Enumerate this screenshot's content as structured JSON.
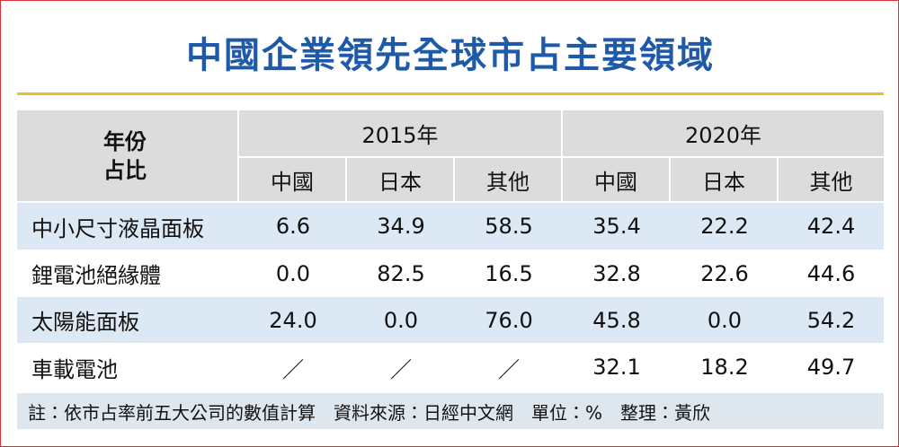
{
  "title": "中國企業領先全球市占主要領域",
  "table": {
    "corner": [
      "年份",
      "占比"
    ],
    "groups": [
      "2015年",
      "2020年"
    ],
    "subheaders": [
      "中國",
      "日本",
      "其他",
      "中國",
      "日本",
      "其他"
    ],
    "rows": [
      {
        "label": "中小尺寸液晶面板",
        "cells": [
          "6.6",
          "34.9",
          "58.5",
          "35.4",
          "22.2",
          "42.4"
        ]
      },
      {
        "label": "鋰電池絕緣體",
        "cells": [
          "0.0",
          "82.5",
          "16.5",
          "32.8",
          "22.6",
          "44.6"
        ]
      },
      {
        "label": "太陽能面板",
        "cells": [
          "24.0",
          "0.0",
          "76.0",
          "45.8",
          "0.0",
          "54.2"
        ]
      },
      {
        "label": "車載電池",
        "cells": [
          "／",
          "／",
          "／",
          "32.1",
          "18.2",
          "49.7"
        ]
      }
    ]
  },
  "footnote": "註：依市占率前五大公司的數值計算　資料來源：日經中文網　單位：%　整理：黃欣"
}
